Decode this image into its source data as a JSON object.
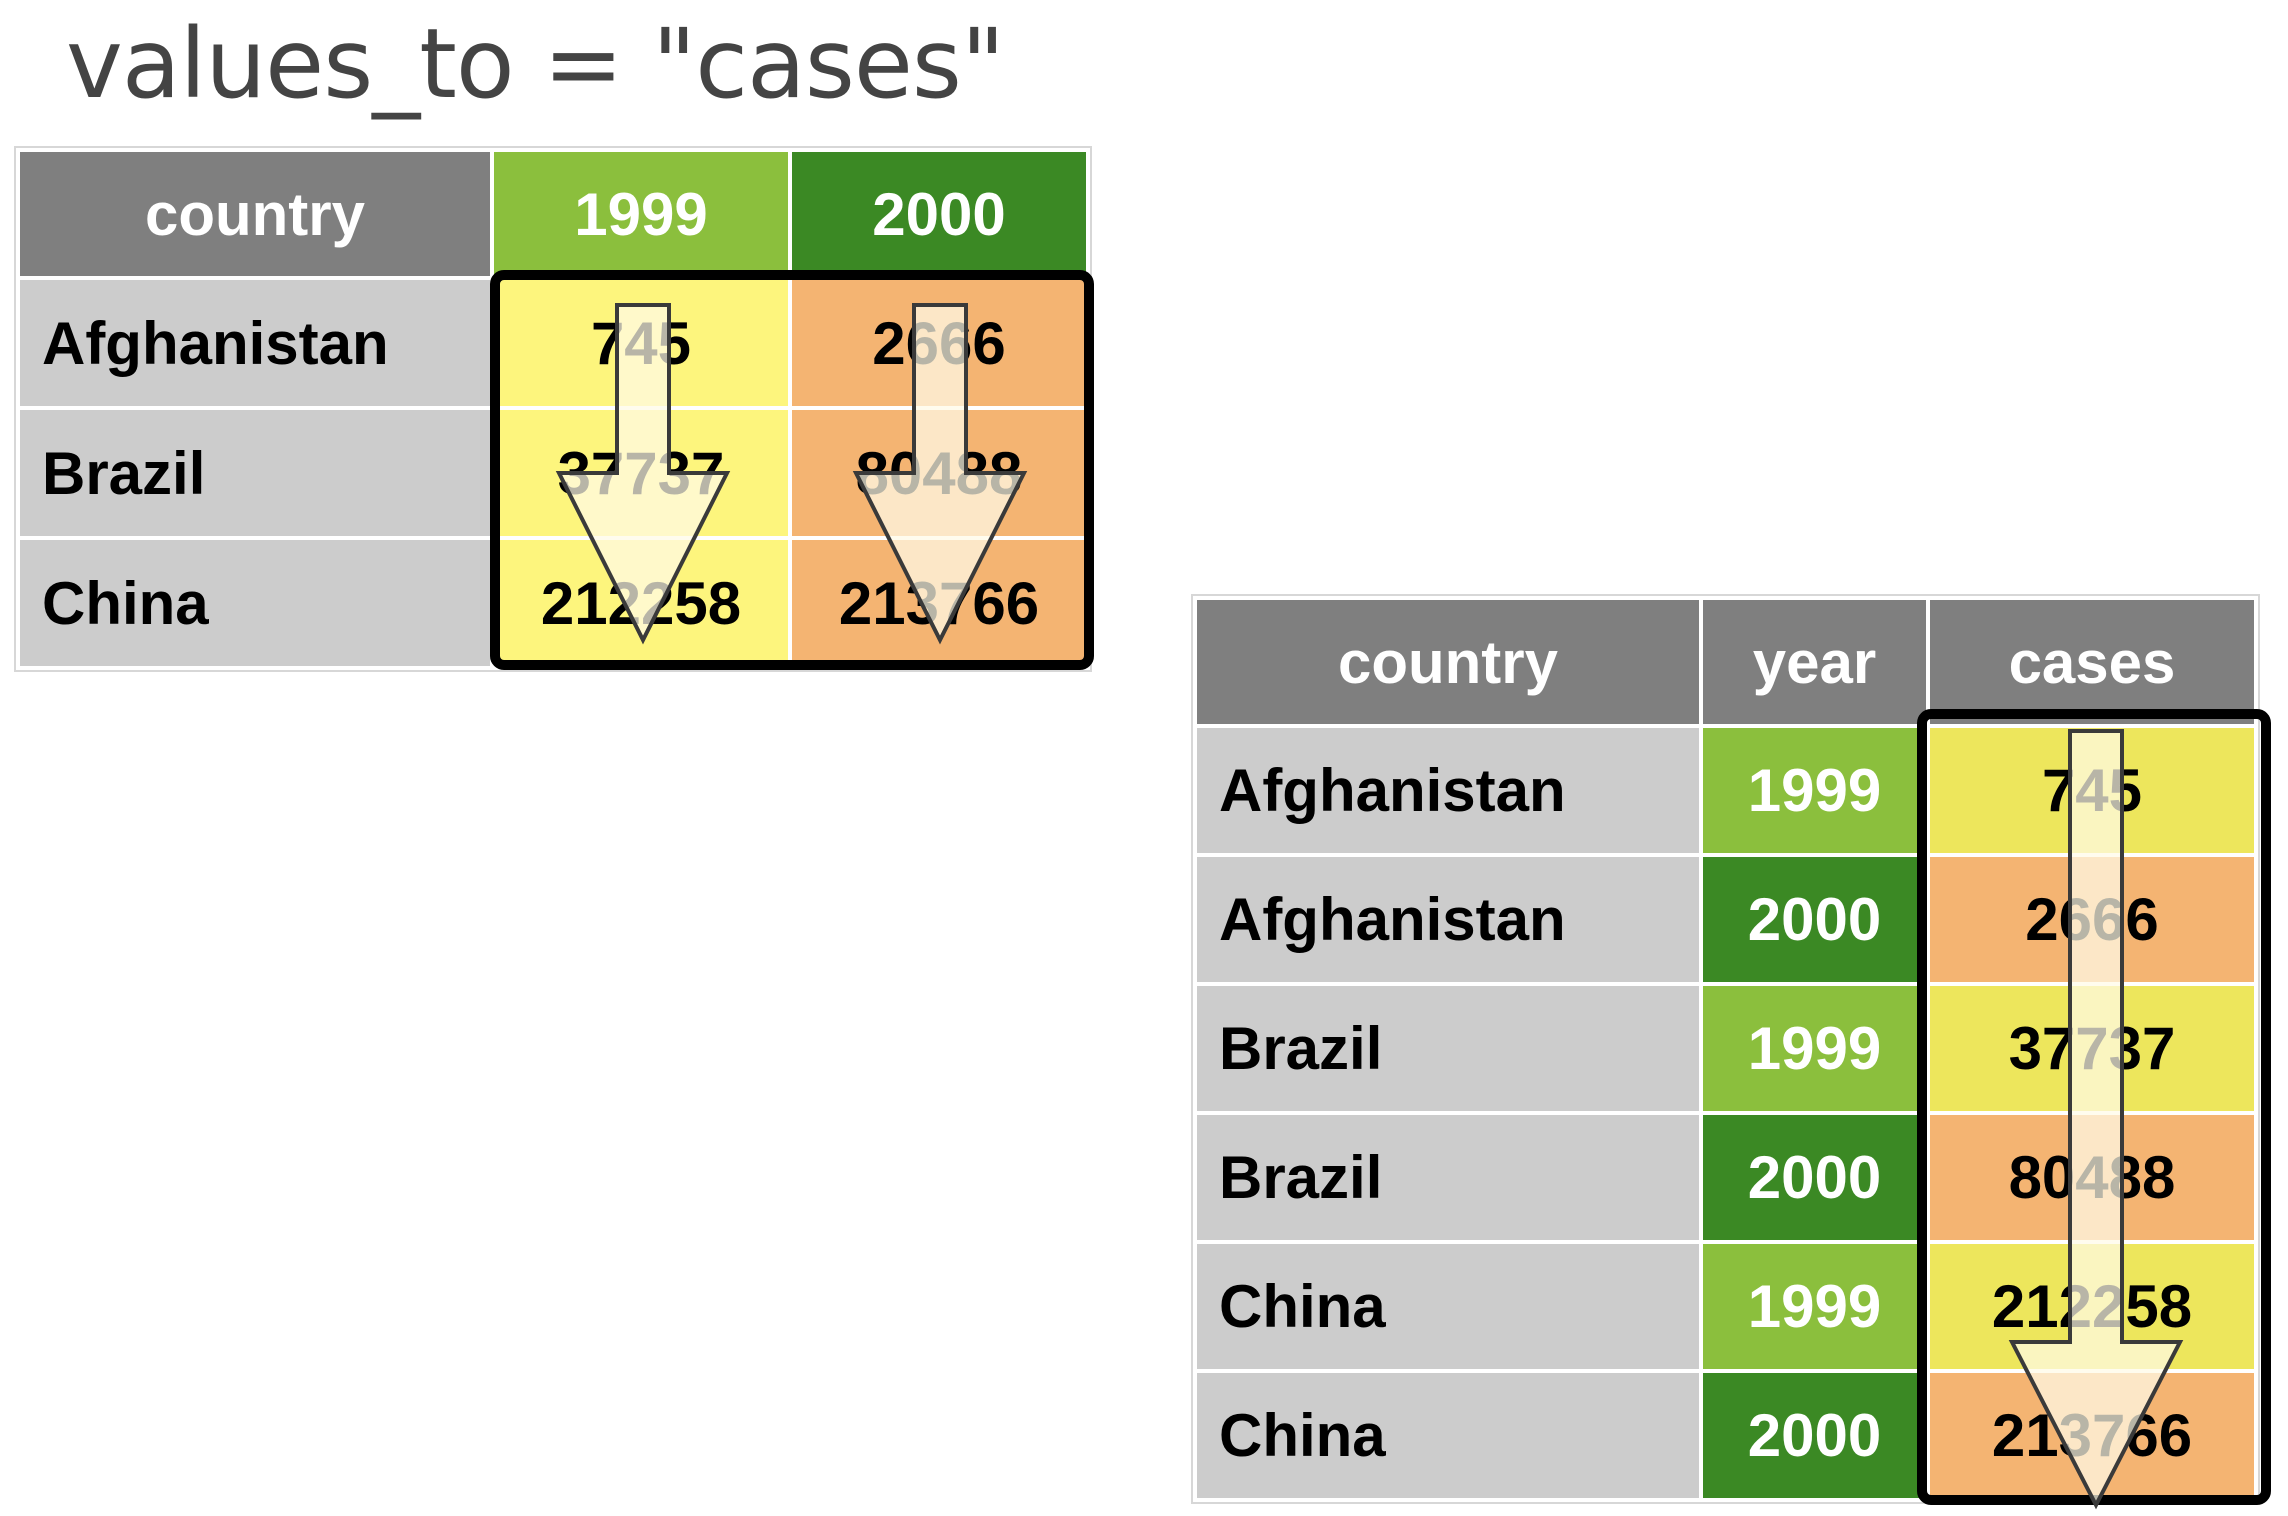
{
  "title": "values_to = \"cases\"",
  "wide_table": {
    "headers": [
      "country",
      "1999",
      "2000"
    ],
    "rows": [
      {
        "country": "Afghanistan",
        "v1999": "745",
        "v2000": "2666"
      },
      {
        "country": "Brazil",
        "v1999": "37737",
        "v2000": "80488"
      },
      {
        "country": "China",
        "v1999": "212258",
        "v2000": "213766"
      }
    ]
  },
  "long_table": {
    "headers": [
      "country",
      "year",
      "cases"
    ],
    "rows": [
      {
        "country": "Afghanistan",
        "year": "1999",
        "cases": "745"
      },
      {
        "country": "Afghanistan",
        "year": "2000",
        "cases": "2666"
      },
      {
        "country": "Brazil",
        "year": "1999",
        "cases": "37737"
      },
      {
        "country": "Brazil",
        "year": "2000",
        "cases": "80488"
      },
      {
        "country": "China",
        "year": "1999",
        "cases": "212258"
      },
      {
        "country": "China",
        "year": "2000",
        "cases": "213766"
      }
    ]
  },
  "colors": {
    "header": "#7f7f7f",
    "country_cell": "#cccccc",
    "year_1999": "#8bbf3d",
    "year_2000": "#3b8924",
    "value_1999": "#fdf57d",
    "value_2000": "#f4b472",
    "highlight_frame": "#000000",
    "arrow_fill": "#fffbe8"
  },
  "icons": [
    "down-arrow-icon"
  ]
}
